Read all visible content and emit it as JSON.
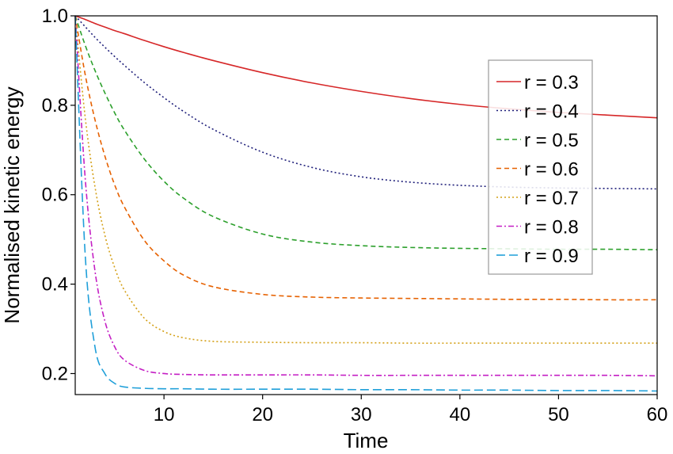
{
  "chart_data": {
    "type": "line",
    "title": "",
    "xlabel": "Time",
    "ylabel": "Normalised kinetic energy",
    "xlim": [
      1,
      60
    ],
    "ylim": [
      0.153,
      1.0
    ],
    "xticks": [
      10,
      20,
      30,
      40,
      50,
      60
    ],
    "yticks": [
      0.2,
      0.4,
      0.6,
      0.8,
      1.0
    ],
    "xtick_labels": [
      "10",
      "20",
      "30",
      "40",
      "50",
      "60"
    ],
    "ytick_labels": [
      "0.2",
      "0.4",
      "0.6",
      "0.8",
      "1.0"
    ],
    "grid": false,
    "legend_position": "upper-right",
    "x": [
      1,
      2,
      3,
      4,
      5,
      6,
      8,
      10,
      12,
      15,
      20,
      25,
      30,
      35,
      40,
      45,
      50,
      55,
      60
    ],
    "series": [
      {
        "name": "r = 0.3",
        "color": "#d62728",
        "dash": "solid",
        "values": [
          1.0,
          0.992,
          0.983,
          0.975,
          0.967,
          0.96,
          0.945,
          0.931,
          0.918,
          0.9,
          0.873,
          0.85,
          0.831,
          0.815,
          0.802,
          0.792,
          0.784,
          0.778,
          0.772
        ]
      },
      {
        "name": "r = 0.4",
        "color": "#1f1f7a",
        "dash": "dotted",
        "values": [
          1.0,
          0.976,
          0.952,
          0.93,
          0.909,
          0.889,
          0.851,
          0.817,
          0.786,
          0.746,
          0.695,
          0.661,
          0.64,
          0.628,
          0.621,
          0.617,
          0.615,
          0.614,
          0.613
        ]
      },
      {
        "name": "r = 0.5",
        "color": "#2ca02c",
        "dash": "dashed",
        "values": [
          1.0,
          0.935,
          0.878,
          0.828,
          0.783,
          0.744,
          0.68,
          0.63,
          0.592,
          0.551,
          0.512,
          0.494,
          0.486,
          0.482,
          0.48,
          0.479,
          0.478,
          0.478,
          0.477
        ]
      },
      {
        "name": "r = 0.6",
        "color": "#e66100",
        "dash": "dashed",
        "values": [
          1.0,
          0.87,
          0.768,
          0.687,
          0.622,
          0.572,
          0.498,
          0.452,
          0.42,
          0.394,
          0.377,
          0.371,
          0.369,
          0.368,
          0.367,
          0.366,
          0.366,
          0.365,
          0.365
        ]
      },
      {
        "name": "r = 0.7",
        "color": "#d4a017",
        "dash": "dotted",
        "values": [
          1.0,
          0.775,
          0.618,
          0.51,
          0.437,
          0.386,
          0.324,
          0.294,
          0.28,
          0.272,
          0.27,
          0.269,
          0.269,
          0.268,
          0.268,
          0.268,
          0.268,
          0.268,
          0.268
        ]
      },
      {
        "name": "r = 0.8",
        "color": "#c41fc4",
        "dash": "dashdot",
        "values": [
          1.0,
          0.64,
          0.43,
          0.318,
          0.26,
          0.23,
          0.207,
          0.2,
          0.198,
          0.197,
          0.197,
          0.197,
          0.196,
          0.196,
          0.196,
          0.196,
          0.196,
          0.196,
          0.195
        ]
      },
      {
        "name": "r = 0.9",
        "color": "#1f9fd9",
        "dash": "longdash",
        "values": [
          1.0,
          0.47,
          0.26,
          0.2,
          0.178,
          0.17,
          0.167,
          0.166,
          0.166,
          0.165,
          0.165,
          0.165,
          0.164,
          0.164,
          0.163,
          0.163,
          0.162,
          0.162,
          0.161
        ]
      }
    ]
  }
}
